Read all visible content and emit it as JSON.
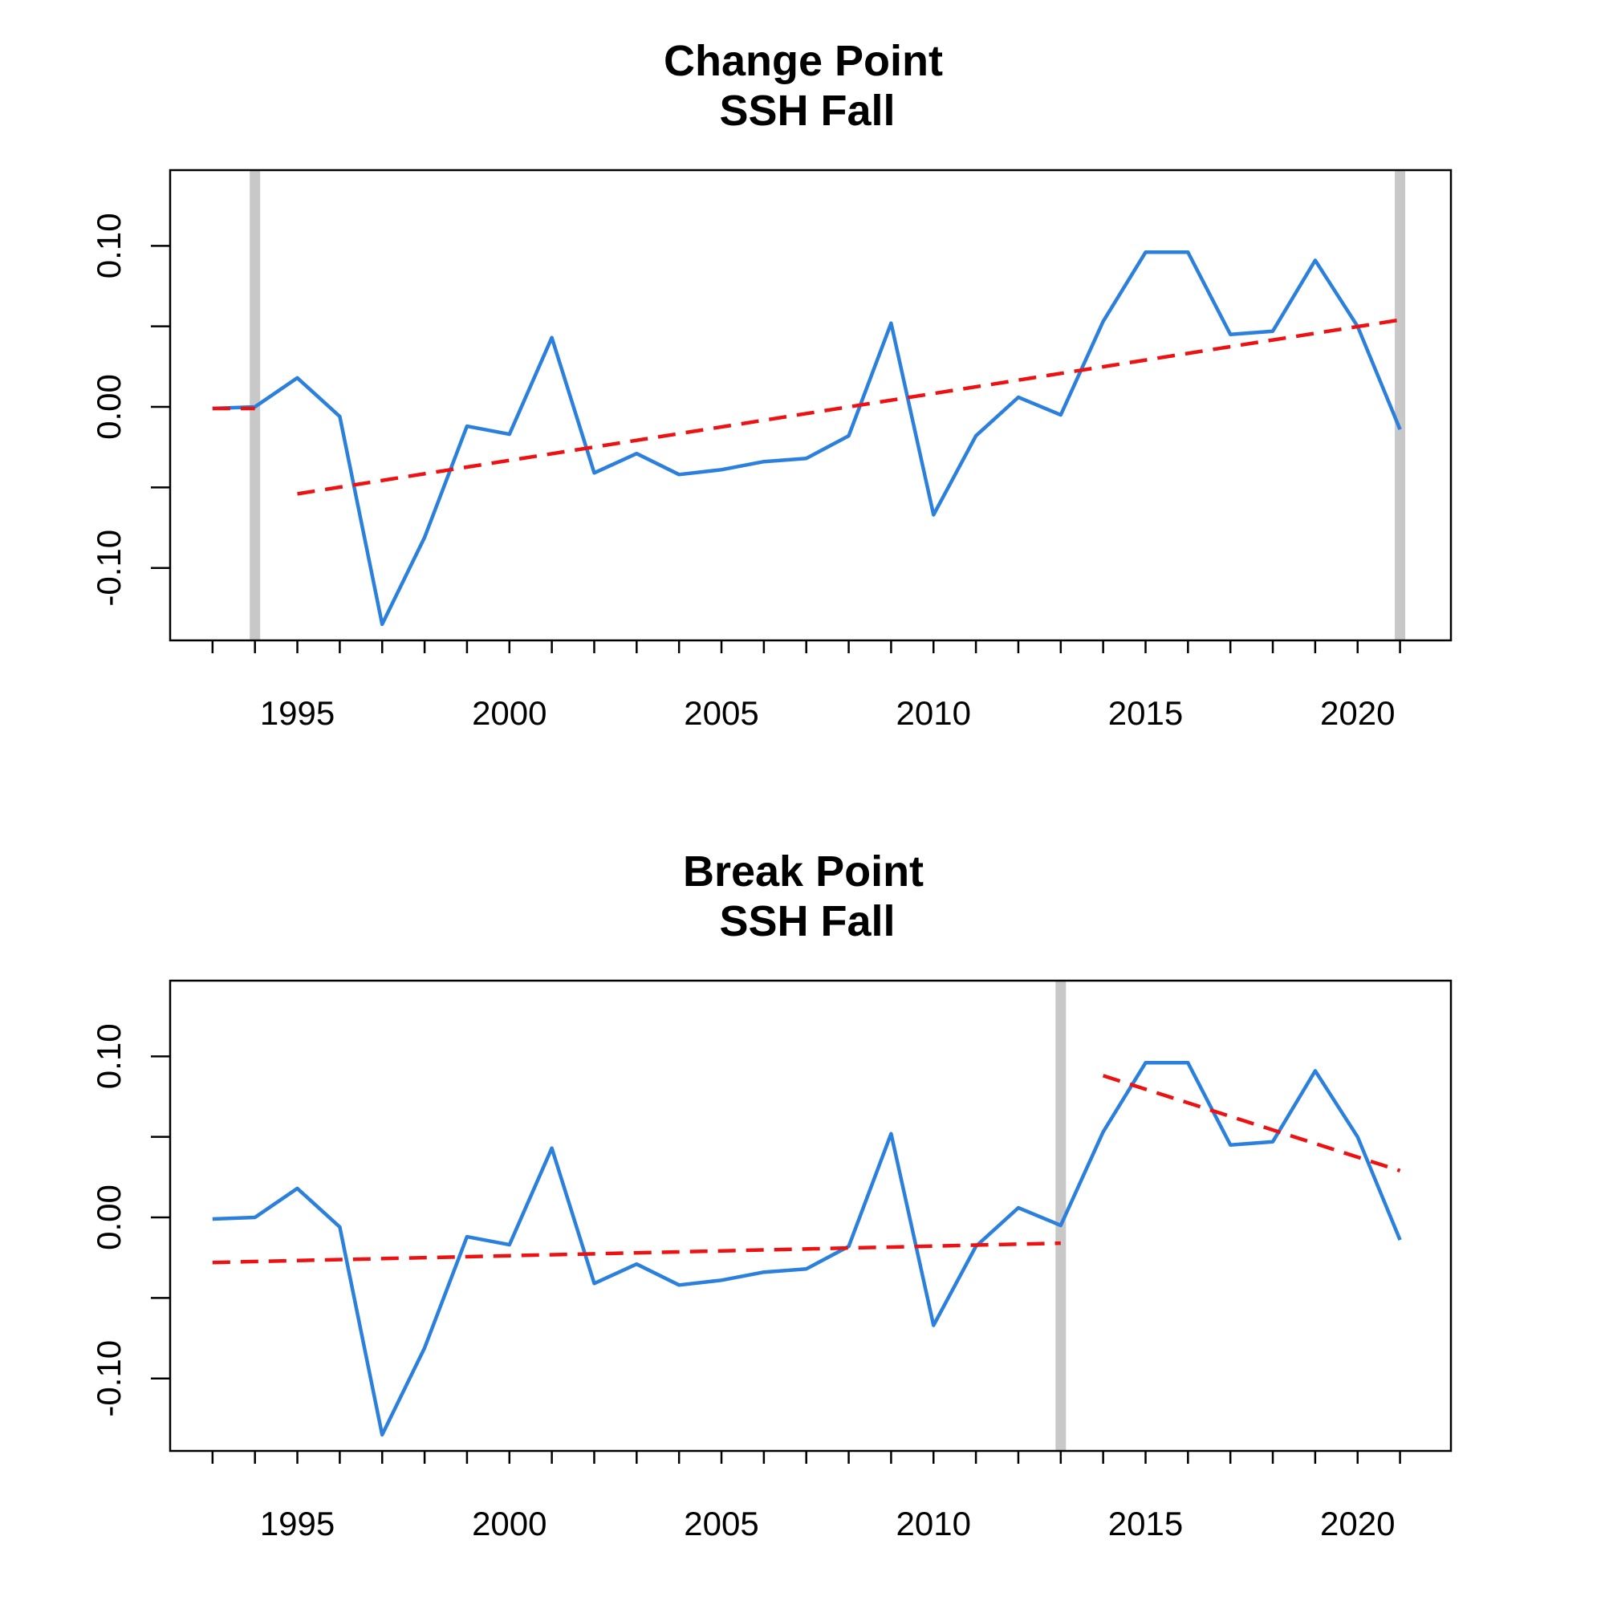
{
  "colors": {
    "series": "#2a80dc",
    "trend": "#ee1111",
    "breakpoint": "#c8c8c8",
    "frame": "#000000"
  },
  "chart_data": [
    {
      "type": "line",
      "title": "Change Point",
      "subtitle": "SSH Fall",
      "xlabel": "",
      "ylabel": "",
      "xlim": [
        1992.0,
        2022.2
      ],
      "ylim": [
        -0.145,
        0.147
      ],
      "xticks": [
        1993,
        1994,
        1995,
        1996,
        1997,
        1998,
        1999,
        2000,
        2001,
        2002,
        2003,
        2004,
        2005,
        2006,
        2007,
        2008,
        2009,
        2010,
        2011,
        2012,
        2013,
        2014,
        2015,
        2016,
        2017,
        2018,
        2019,
        2020,
        2021
      ],
      "xtick_labels": [
        "1995",
        "2000",
        "2005",
        "2010",
        "2015",
        "2020"
      ],
      "xtick_label_values": [
        1995,
        2000,
        2005,
        2010,
        2015,
        2020
      ],
      "yticks": [
        -0.1,
        -0.05,
        0.0,
        0.05,
        0.1
      ],
      "ytick_labels": [
        "-0.10",
        "0.00",
        "0.10"
      ],
      "ytick_label_values": [
        -0.1,
        0.0,
        0.1
      ],
      "grid": false,
      "x": [
        1993,
        1994,
        1995,
        1996,
        1997,
        1998,
        1999,
        2000,
        2001,
        2002,
        2003,
        2004,
        2005,
        2006,
        2007,
        2008,
        2009,
        2010,
        2011,
        2012,
        2013,
        2014,
        2015,
        2016,
        2017,
        2018,
        2019,
        2020,
        2021
      ],
      "y": [
        -0.001,
        0.0,
        0.018,
        -0.006,
        -0.135,
        -0.081,
        -0.012,
        -0.017,
        0.043,
        -0.041,
        -0.029,
        -0.042,
        -0.039,
        -0.034,
        -0.032,
        -0.018,
        0.052,
        -0.067,
        -0.018,
        0.006,
        -0.005,
        0.053,
        0.096,
        0.096,
        0.045,
        0.047,
        0.091,
        0.05,
        -0.014
      ],
      "trend_segments": [
        {
          "x": [
            1993,
            1994
          ],
          "y": [
            -0.001,
            -0.001
          ]
        },
        {
          "x": [
            1995,
            2021
          ],
          "y": [
            -0.054,
            0.054
          ]
        }
      ],
      "breakpoints": [
        1994,
        2021
      ]
    },
    {
      "type": "line",
      "title": "Break Point",
      "subtitle": "SSH Fall",
      "xlabel": "",
      "ylabel": "",
      "xlim": [
        1992.0,
        2022.2
      ],
      "ylim": [
        -0.145,
        0.147
      ],
      "xticks": [
        1993,
        1994,
        1995,
        1996,
        1997,
        1998,
        1999,
        2000,
        2001,
        2002,
        2003,
        2004,
        2005,
        2006,
        2007,
        2008,
        2009,
        2010,
        2011,
        2012,
        2013,
        2014,
        2015,
        2016,
        2017,
        2018,
        2019,
        2020,
        2021
      ],
      "xtick_labels": [
        "1995",
        "2000",
        "2005",
        "2010",
        "2015",
        "2020"
      ],
      "xtick_label_values": [
        1995,
        2000,
        2005,
        2010,
        2015,
        2020
      ],
      "yticks": [
        -0.1,
        -0.05,
        0.0,
        0.05,
        0.1
      ],
      "ytick_labels": [
        "-0.10",
        "0.00",
        "0.10"
      ],
      "ytick_label_values": [
        -0.1,
        0.0,
        0.1
      ],
      "grid": false,
      "x": [
        1993,
        1994,
        1995,
        1996,
        1997,
        1998,
        1999,
        2000,
        2001,
        2002,
        2003,
        2004,
        2005,
        2006,
        2007,
        2008,
        2009,
        2010,
        2011,
        2012,
        2013,
        2014,
        2015,
        2016,
        2017,
        2018,
        2019,
        2020,
        2021
      ],
      "y": [
        -0.001,
        0.0,
        0.018,
        -0.006,
        -0.135,
        -0.081,
        -0.012,
        -0.017,
        0.043,
        -0.041,
        -0.029,
        -0.042,
        -0.039,
        -0.034,
        -0.032,
        -0.018,
        0.052,
        -0.067,
        -0.018,
        0.006,
        -0.005,
        0.053,
        0.096,
        0.096,
        0.045,
        0.047,
        0.091,
        0.05,
        -0.014
      ],
      "trend_segments": [
        {
          "x": [
            1993,
            2013
          ],
          "y": [
            -0.028,
            -0.016
          ]
        },
        {
          "x": [
            2014,
            2021
          ],
          "y": [
            0.088,
            0.029
          ]
        }
      ],
      "breakpoints": [
        2013
      ]
    }
  ]
}
